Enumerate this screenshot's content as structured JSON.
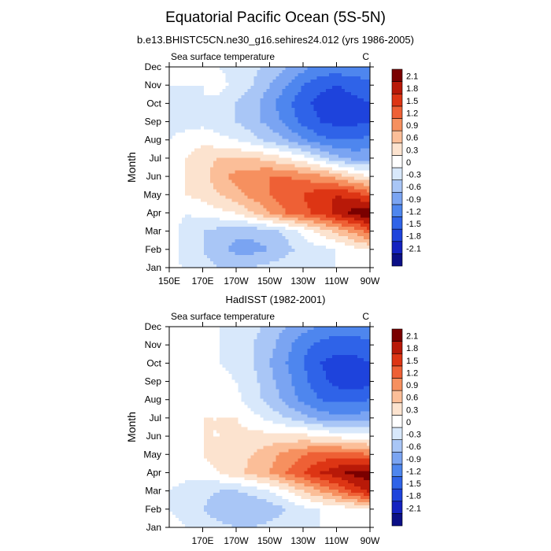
{
  "title": "Equatorial Pacific Ocean (5S-5N)",
  "colors": {
    "levels": [
      -2.1,
      -1.8,
      -1.5,
      -1.2,
      -0.9,
      -0.6,
      -0.3,
      0,
      0.3,
      0.6,
      0.9,
      1.2,
      1.5,
      1.8,
      2.1
    ],
    "fills": [
      "#0b0f86",
      "#1422c0",
      "#1e43dc",
      "#2f63e8",
      "#4e86ee",
      "#7aa4f2",
      "#a9c6f6",
      "#d8e8fb",
      "#ffffff",
      "#fce3cf",
      "#fbbe98",
      "#f6905f",
      "#ee6035",
      "#dd3514",
      "#b81908",
      "#7a0000"
    ]
  },
  "chart_data": [
    {
      "type": "heatmap",
      "name": "model",
      "subtitle": "b.e13.BHISTC5CN.ne30_g16.sehires24.012 (yrs 1986-2005)",
      "left_label": "Sea surface temperature",
      "right_label": "C",
      "ylabel": "Month",
      "x_ticks": [
        "150E",
        "170E",
        "170W",
        "150W",
        "130W",
        "110W",
        "90W"
      ],
      "y_ticks": [
        "Jan",
        "Feb",
        "Mar",
        "Apr",
        "May",
        "Jun",
        "Jul",
        "Aug",
        "Sep",
        "Oct",
        "Nov",
        "Dec"
      ],
      "x_lon": [
        150,
        160,
        170,
        180,
        190,
        200,
        210,
        220,
        230,
        240,
        250,
        260,
        270
      ],
      "z": [
        [
          0.2,
          -0.1,
          -0.2,
          -0.3,
          -0.3,
          -0.3,
          -0.2,
          -0.1,
          0.0,
          0.0,
          0.0,
          0.1,
          0.1
        ],
        [
          0.1,
          -0.1,
          -0.3,
          -0.5,
          -0.7,
          -0.7,
          -0.6,
          -0.4,
          -0.2,
          -0.1,
          0.0,
          0.2,
          0.3
        ],
        [
          0.1,
          -0.1,
          -0.3,
          -0.4,
          -0.5,
          -0.5,
          -0.4,
          -0.2,
          0.1,
          0.4,
          0.7,
          1.0,
          1.4
        ],
        [
          0.1,
          0.0,
          0.1,
          0.2,
          0.3,
          0.6,
          0.9,
          1.2,
          1.4,
          1.6,
          1.9,
          2.2,
          2.4
        ],
        [
          0.2,
          0.3,
          0.4,
          0.6,
          0.8,
          1.0,
          1.2,
          1.4,
          1.5,
          1.7,
          1.8,
          1.7,
          1.4
        ],
        [
          0.2,
          0.3,
          0.5,
          0.8,
          1.0,
          1.1,
          1.2,
          1.2,
          1.1,
          1.0,
          0.8,
          0.5,
          0.3
        ],
        [
          0.1,
          0.3,
          0.5,
          0.6,
          0.6,
          0.6,
          0.5,
          0.3,
          0.1,
          -0.2,
          -0.5,
          -0.7,
          -0.7
        ],
        [
          0.0,
          0.1,
          0.2,
          0.1,
          0.0,
          -0.2,
          -0.4,
          -0.6,
          -0.9,
          -1.1,
          -1.2,
          -1.2,
          -1.1
        ],
        [
          -0.1,
          -0.1,
          -0.1,
          -0.2,
          -0.3,
          -0.5,
          -0.7,
          -1.0,
          -1.3,
          -1.5,
          -1.6,
          -1.6,
          -1.5
        ],
        [
          -0.1,
          -0.1,
          0.0,
          -0.1,
          -0.3,
          -0.5,
          -0.8,
          -1.1,
          -1.4,
          -1.6,
          -1.7,
          -1.6,
          -1.5
        ],
        [
          0.0,
          0.0,
          0.0,
          0.1,
          -0.1,
          -0.3,
          -0.6,
          -0.9,
          -1.2,
          -1.4,
          -1.5,
          -1.4,
          -1.3
        ],
        [
          0.1,
          0.0,
          0.0,
          0.0,
          -0.1,
          -0.2,
          -0.4,
          -0.6,
          -0.8,
          -1.0,
          -1.0,
          -1.0,
          -0.9
        ]
      ]
    },
    {
      "type": "heatmap",
      "name": "observations",
      "subtitle": "HadISST (1982-2001)",
      "left_label": "Sea surface temperature",
      "right_label": "C",
      "ylabel": "Month",
      "x_ticks": [
        "170E",
        "170W",
        "150W",
        "130W",
        "110W",
        "90W"
      ],
      "y_ticks": [
        "Jan",
        "Feb",
        "Mar",
        "Apr",
        "May",
        "Jun",
        "Jul",
        "Aug",
        "Sep",
        "Oct",
        "Nov",
        "Dec"
      ],
      "x_lon": [
        150,
        160,
        170,
        180,
        190,
        200,
        210,
        220,
        230,
        240,
        250,
        260,
        270
      ],
      "z": [
        [
          0.1,
          0.0,
          -0.1,
          -0.2,
          -0.3,
          -0.3,
          -0.2,
          -0.1,
          0.0,
          0.0,
          0.0,
          0.0,
          0.1
        ],
        [
          0.0,
          -0.1,
          -0.3,
          -0.5,
          -0.6,
          -0.6,
          -0.5,
          -0.3,
          -0.1,
          0.0,
          0.1,
          0.2,
          0.3
        ],
        [
          0.0,
          -0.1,
          -0.2,
          -0.3,
          -0.3,
          -0.2,
          0.0,
          0.3,
          0.6,
          0.9,
          1.2,
          1.6,
          1.9
        ],
        [
          0.1,
          0.1,
          0.2,
          0.3,
          0.5,
          0.7,
          0.9,
          1.2,
          1.5,
          1.8,
          2.0,
          2.2,
          2.3
        ],
        [
          0.2,
          0.2,
          0.3,
          0.4,
          0.5,
          0.6,
          0.8,
          1.0,
          1.2,
          1.3,
          1.4,
          1.3,
          1.2
        ],
        [
          0.2,
          0.2,
          0.3,
          0.3,
          0.4,
          0.4,
          0.4,
          0.4,
          0.4,
          0.3,
          0.2,
          0.1,
          0.1
        ],
        [
          0.2,
          0.2,
          0.3,
          0.3,
          0.3,
          0.1,
          -0.1,
          -0.3,
          -0.5,
          -0.7,
          -0.8,
          -0.8,
          -0.7
        ],
        [
          0.1,
          0.1,
          0.2,
          0.2,
          0.1,
          -0.2,
          -0.4,
          -0.7,
          -1.0,
          -1.2,
          -1.3,
          -1.3,
          -1.2
        ],
        [
          0.0,
          0.1,
          0.2,
          0.1,
          0.0,
          -0.2,
          -0.5,
          -0.8,
          -1.1,
          -1.4,
          -1.6,
          -1.7,
          -1.6
        ],
        [
          0.0,
          0.1,
          0.1,
          0.0,
          -0.1,
          -0.3,
          -0.6,
          -0.9,
          -1.2,
          -1.5,
          -1.6,
          -1.6,
          -1.5
        ],
        [
          0.1,
          0.1,
          0.1,
          0.0,
          -0.1,
          -0.3,
          -0.5,
          -0.8,
          -1.1,
          -1.3,
          -1.4,
          -1.4,
          -1.3
        ],
        [
          0.1,
          0.1,
          0.1,
          0.0,
          -0.1,
          -0.2,
          -0.4,
          -0.6,
          -0.8,
          -0.9,
          -1.0,
          -1.0,
          -0.9
        ]
      ]
    }
  ]
}
